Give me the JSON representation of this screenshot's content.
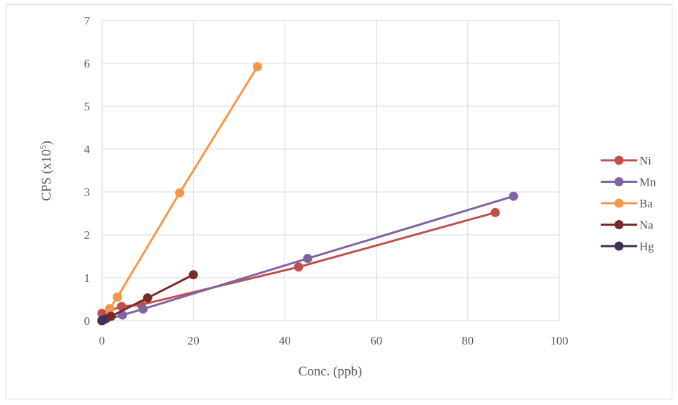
{
  "chart_data": {
    "type": "scatter",
    "title": "",
    "xlabel": "Conc. (ppb)",
    "ylabel_base": "CPS (x10",
    "ylabel_exp": "5",
    "ylabel_close": ")",
    "xlim": [
      0,
      100
    ],
    "ylim": [
      0,
      7
    ],
    "xticks": [
      0,
      20,
      40,
      60,
      80,
      100
    ],
    "yticks": [
      0,
      1,
      2,
      3,
      4,
      5,
      6,
      7
    ],
    "grid": true,
    "legend_position": "right",
    "series": [
      {
        "name": "Ni",
        "color": "#c0504d",
        "x": [
          0,
          4.3,
          8.6,
          43,
          86
        ],
        "y": [
          0.17,
          0.33,
          0.37,
          1.25,
          2.52
        ]
      },
      {
        "name": "Mn",
        "color": "#8064a2",
        "x": [
          0,
          4.5,
          9,
          45,
          90
        ],
        "y": [
          0,
          0.13,
          0.27,
          1.45,
          2.9
        ]
      },
      {
        "name": "Ba",
        "color": "#f79646",
        "x": [
          0,
          1.7,
          3.4,
          17,
          34
        ],
        "y": [
          0,
          0.28,
          0.55,
          2.98,
          5.92
        ]
      },
      {
        "name": "Na",
        "color": "#772c2a",
        "x": [
          0,
          1,
          2,
          10,
          20
        ],
        "y": [
          0,
          0.05,
          0.1,
          0.53,
          1.07
        ]
      },
      {
        "name": "Hg",
        "color": "#403152",
        "x": [
          0,
          0.2,
          0.4
        ],
        "y": [
          0,
          0.01,
          0.02
        ]
      }
    ]
  }
}
